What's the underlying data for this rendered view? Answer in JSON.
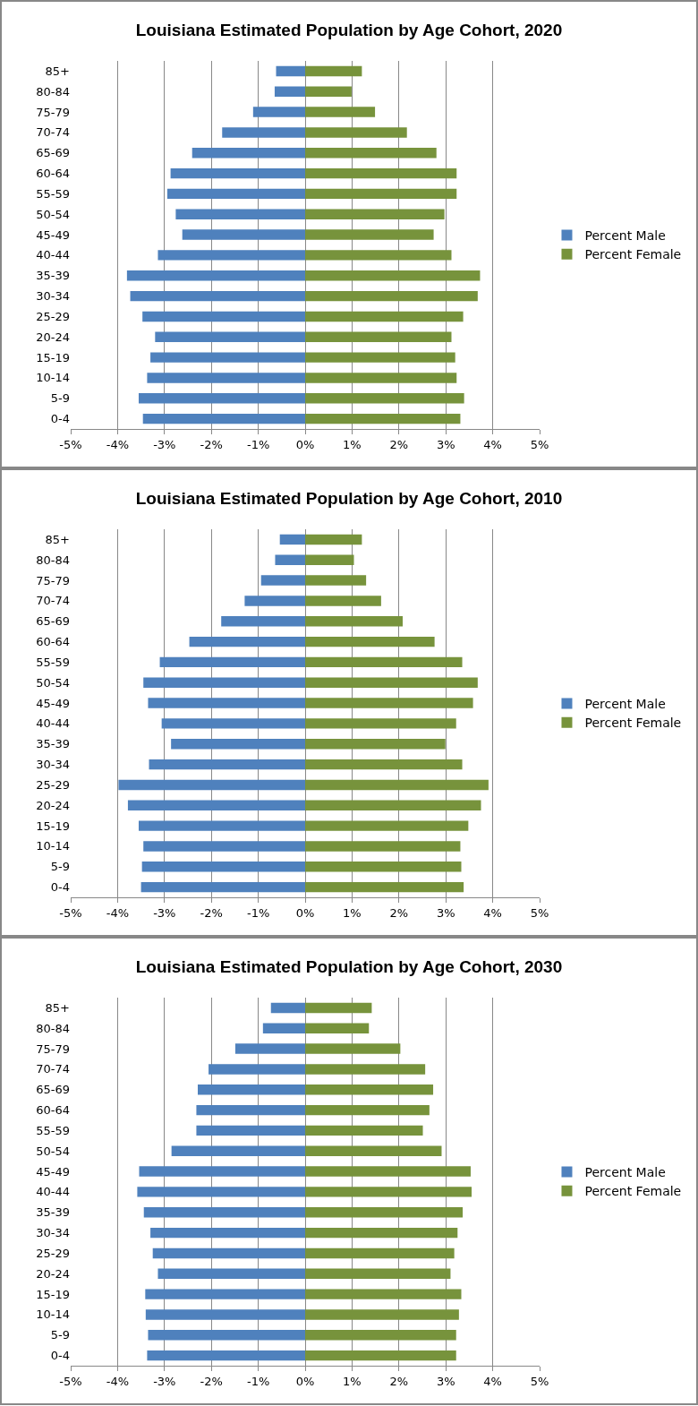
{
  "chart_data": [
    {
      "type": "bar",
      "orientation": "horizontal",
      "stacked": true,
      "title": "Louisiana Estimated Population by Age Cohort, 2020",
      "categories": [
        "85+",
        "80-84",
        "75-79",
        "70-74",
        "65-69",
        "60-64",
        "55-59",
        "50-54",
        "45-49",
        "40-44",
        "35-39",
        "30-34",
        "25-29",
        "20-24",
        "15-19",
        "10-14",
        "5-9",
        "0-4"
      ],
      "series": [
        {
          "name": "Percent Male",
          "color": "#4f81bd",
          "values": [
            -0.62,
            -0.65,
            -1.11,
            -1.77,
            -2.41,
            -2.87,
            -2.94,
            -2.76,
            -2.62,
            -3.14,
            -3.8,
            -3.73,
            -3.47,
            -3.2,
            -3.3,
            -3.37,
            -3.55,
            -3.46
          ]
        },
        {
          "name": "Percent Female",
          "color": "#77933c",
          "values": [
            1.21,
            0.99,
            1.49,
            2.17,
            2.8,
            3.23,
            3.23,
            2.97,
            2.74,
            3.12,
            3.73,
            3.68,
            3.37,
            3.12,
            3.2,
            3.23,
            3.39,
            3.31
          ]
        }
      ],
      "xlim": [
        -5,
        5
      ],
      "xticks": [
        {
          "value": -5,
          "label": "-5%"
        },
        {
          "value": -4,
          "label": "-4%"
        },
        {
          "value": -3,
          "label": "-3%"
        },
        {
          "value": -2,
          "label": "-2%"
        },
        {
          "value": -1,
          "label": "-1%"
        },
        {
          "value": 0,
          "label": "0%"
        },
        {
          "value": 1,
          "label": "1%"
        },
        {
          "value": 2,
          "label": "2%"
        },
        {
          "value": 3,
          "label": "3%"
        },
        {
          "value": 4,
          "label": "4%"
        },
        {
          "value": 5,
          "label": "5%"
        }
      ],
      "grid": "x",
      "legend": "right"
    },
    {
      "type": "bar",
      "orientation": "horizontal",
      "stacked": true,
      "title": "Louisiana Estimated Population by Age Cohort, 2010",
      "categories": [
        "85+",
        "80-84",
        "75-79",
        "70-74",
        "65-69",
        "60-64",
        "55-59",
        "50-54",
        "45-49",
        "40-44",
        "35-39",
        "30-34",
        "25-29",
        "20-24",
        "15-19",
        "10-14",
        "5-9",
        "0-4"
      ],
      "series": [
        {
          "name": "Percent Male",
          "color": "#4f81bd",
          "values": [
            -0.54,
            -0.64,
            -0.94,
            -1.29,
            -1.79,
            -2.47,
            -3.1,
            -3.45,
            -3.35,
            -3.06,
            -2.86,
            -3.33,
            -3.98,
            -3.78,
            -3.55,
            -3.45,
            -3.48,
            -3.5
          ]
        },
        {
          "name": "Percent Female",
          "color": "#77933c",
          "values": [
            1.21,
            1.04,
            1.3,
            1.62,
            2.08,
            2.76,
            3.35,
            3.68,
            3.58,
            3.22,
            2.99,
            3.35,
            3.91,
            3.75,
            3.48,
            3.31,
            3.33,
            3.38
          ]
        }
      ],
      "xlim": [
        -5,
        5
      ],
      "xticks": [
        {
          "value": -5,
          "label": "-5%"
        },
        {
          "value": -4,
          "label": "-4%"
        },
        {
          "value": -3,
          "label": "-3%"
        },
        {
          "value": -2,
          "label": "-2%"
        },
        {
          "value": -1,
          "label": "-1%"
        },
        {
          "value": 0,
          "label": "0%"
        },
        {
          "value": 1,
          "label": "1%"
        },
        {
          "value": 2,
          "label": "2%"
        },
        {
          "value": 3,
          "label": "3%"
        },
        {
          "value": 4,
          "label": "4%"
        },
        {
          "value": 5,
          "label": "5%"
        }
      ],
      "grid": "x",
      "legend": "right"
    },
    {
      "type": "bar",
      "orientation": "horizontal",
      "stacked": true,
      "title": "Louisiana Estimated Population by Age Cohort, 2030",
      "categories": [
        "85+",
        "80-84",
        "75-79",
        "70-74",
        "65-69",
        "60-64",
        "55-59",
        "50-54",
        "45-49",
        "40-44",
        "35-39",
        "30-34",
        "25-29",
        "20-24",
        "15-19",
        "10-14",
        "5-9",
        "0-4"
      ],
      "series": [
        {
          "name": "Percent Male",
          "color": "#4f81bd",
          "values": [
            -0.73,
            -0.9,
            -1.49,
            -2.06,
            -2.29,
            -2.32,
            -2.32,
            -2.85,
            -3.54,
            -3.58,
            -3.44,
            -3.3,
            -3.25,
            -3.14,
            -3.41,
            -3.4,
            -3.35,
            -3.37
          ]
        },
        {
          "name": "Percent Female",
          "color": "#77933c",
          "values": [
            1.42,
            1.36,
            2.03,
            2.56,
            2.73,
            2.65,
            2.51,
            2.91,
            3.53,
            3.55,
            3.36,
            3.25,
            3.18,
            3.1,
            3.33,
            3.28,
            3.22,
            3.22
          ]
        }
      ],
      "xlim": [
        -5,
        5
      ],
      "xticks": [
        {
          "value": -5,
          "label": "-5%"
        },
        {
          "value": -4,
          "label": "-4%"
        },
        {
          "value": -3,
          "label": "-3%"
        },
        {
          "value": -2,
          "label": "-2%"
        },
        {
          "value": -1,
          "label": "-1%"
        },
        {
          "value": 0,
          "label": "0%"
        },
        {
          "value": 1,
          "label": "1%"
        },
        {
          "value": 2,
          "label": "2%"
        },
        {
          "value": 3,
          "label": "3%"
        },
        {
          "value": 4,
          "label": "4%"
        },
        {
          "value": 5,
          "label": "5%"
        }
      ],
      "grid": "x",
      "legend": "right"
    }
  ]
}
